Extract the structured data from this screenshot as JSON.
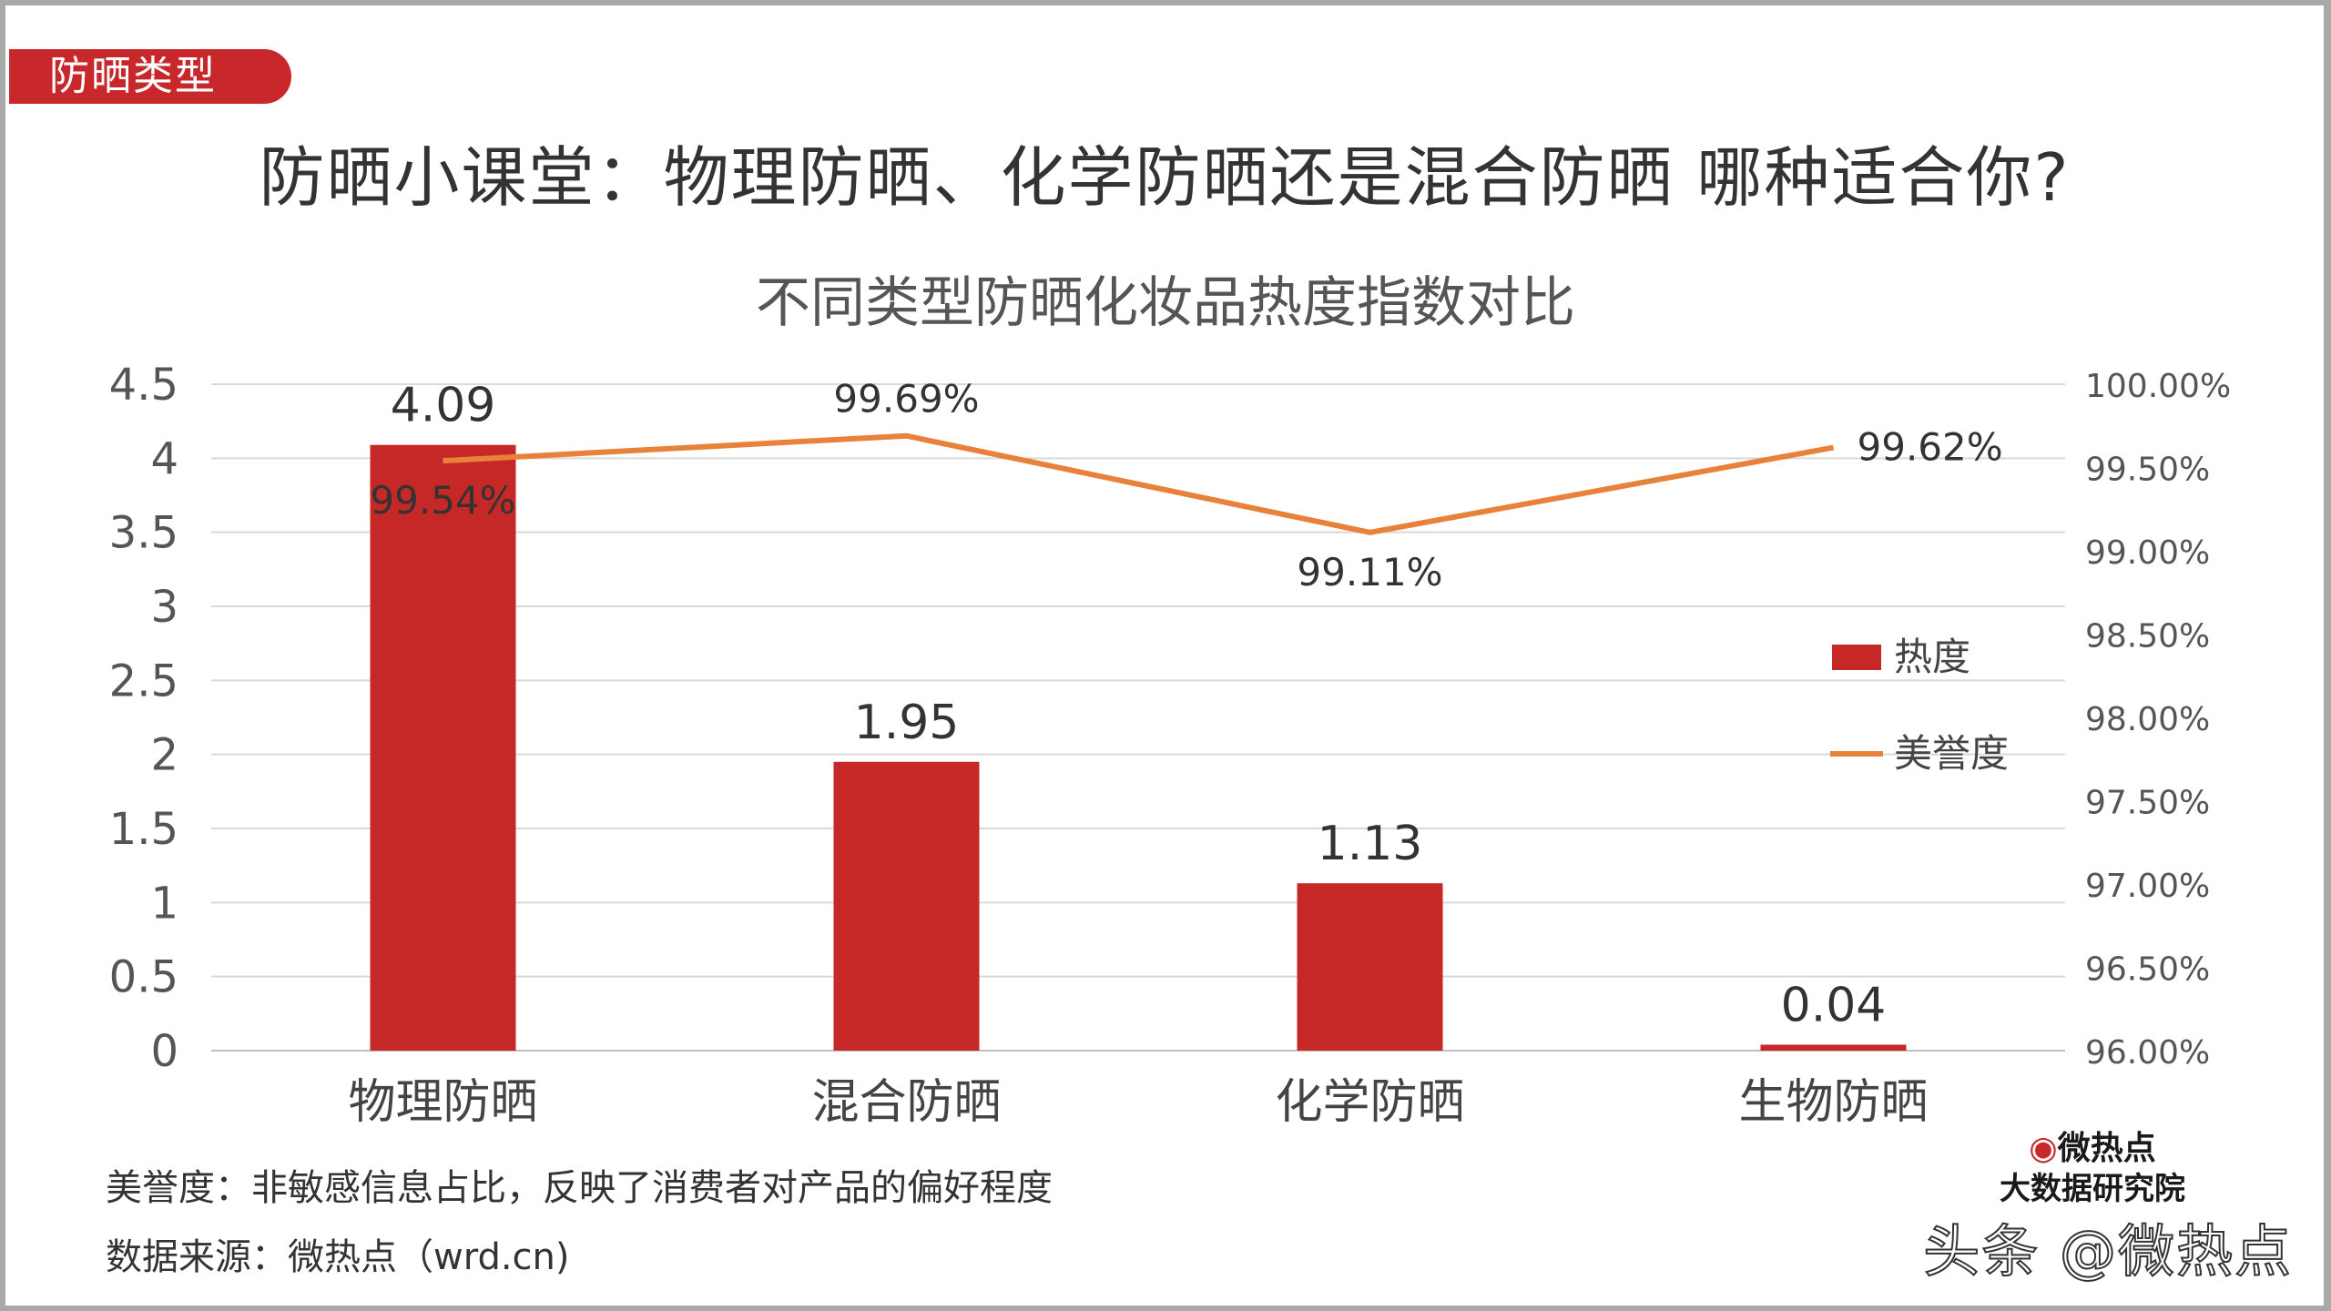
{
  "tag": "防晒类型",
  "main_title": "防晒小课堂：物理防晒、化学防晒还是混合防晒 哪种适合你?",
  "note_def": "美誉度：非敏感信息占比，反映了消费者对产品的偏好程度",
  "note_src": "数据来源：微热点（wrd.cn)",
  "brand": {
    "logo": "微热点",
    "sub": "大数据研究院",
    "watermark": "头条 @微热点"
  },
  "colors": {
    "bar": "#c62828",
    "line": "#e8823a",
    "accent": "#c8282b"
  },
  "chart_data": {
    "type": "bar",
    "title": "不同类型防晒化妆品热度指数对比",
    "categories": [
      "物理防晒",
      "混合防晒",
      "化学防晒",
      "生物防晒"
    ],
    "series": [
      {
        "name": "热度",
        "type": "bar",
        "axis": "left",
        "values": [
          4.09,
          1.95,
          1.13,
          0.04
        ],
        "labels": [
          "4.09",
          "1.95",
          "1.13",
          "0.04"
        ]
      },
      {
        "name": "美誉度",
        "type": "line",
        "axis": "right",
        "values": [
          99.54,
          99.69,
          99.11,
          99.62
        ],
        "labels": [
          "99.54%",
          "99.69%",
          "99.11%",
          "99.62%"
        ]
      }
    ],
    "ylim_left": [
      0,
      4.5
    ],
    "yticks_left": [
      "0",
      "0.5",
      "1",
      "1.5",
      "2",
      "2.5",
      "3",
      "3.5",
      "4",
      "4.5"
    ],
    "ylim_right": [
      96,
      100
    ],
    "yticks_right": [
      "96.00%",
      "96.50%",
      "97.00%",
      "97.50%",
      "98.00%",
      "98.50%",
      "99.00%",
      "99.50%",
      "100.00%"
    ],
    "grid": true,
    "legend": "right"
  }
}
